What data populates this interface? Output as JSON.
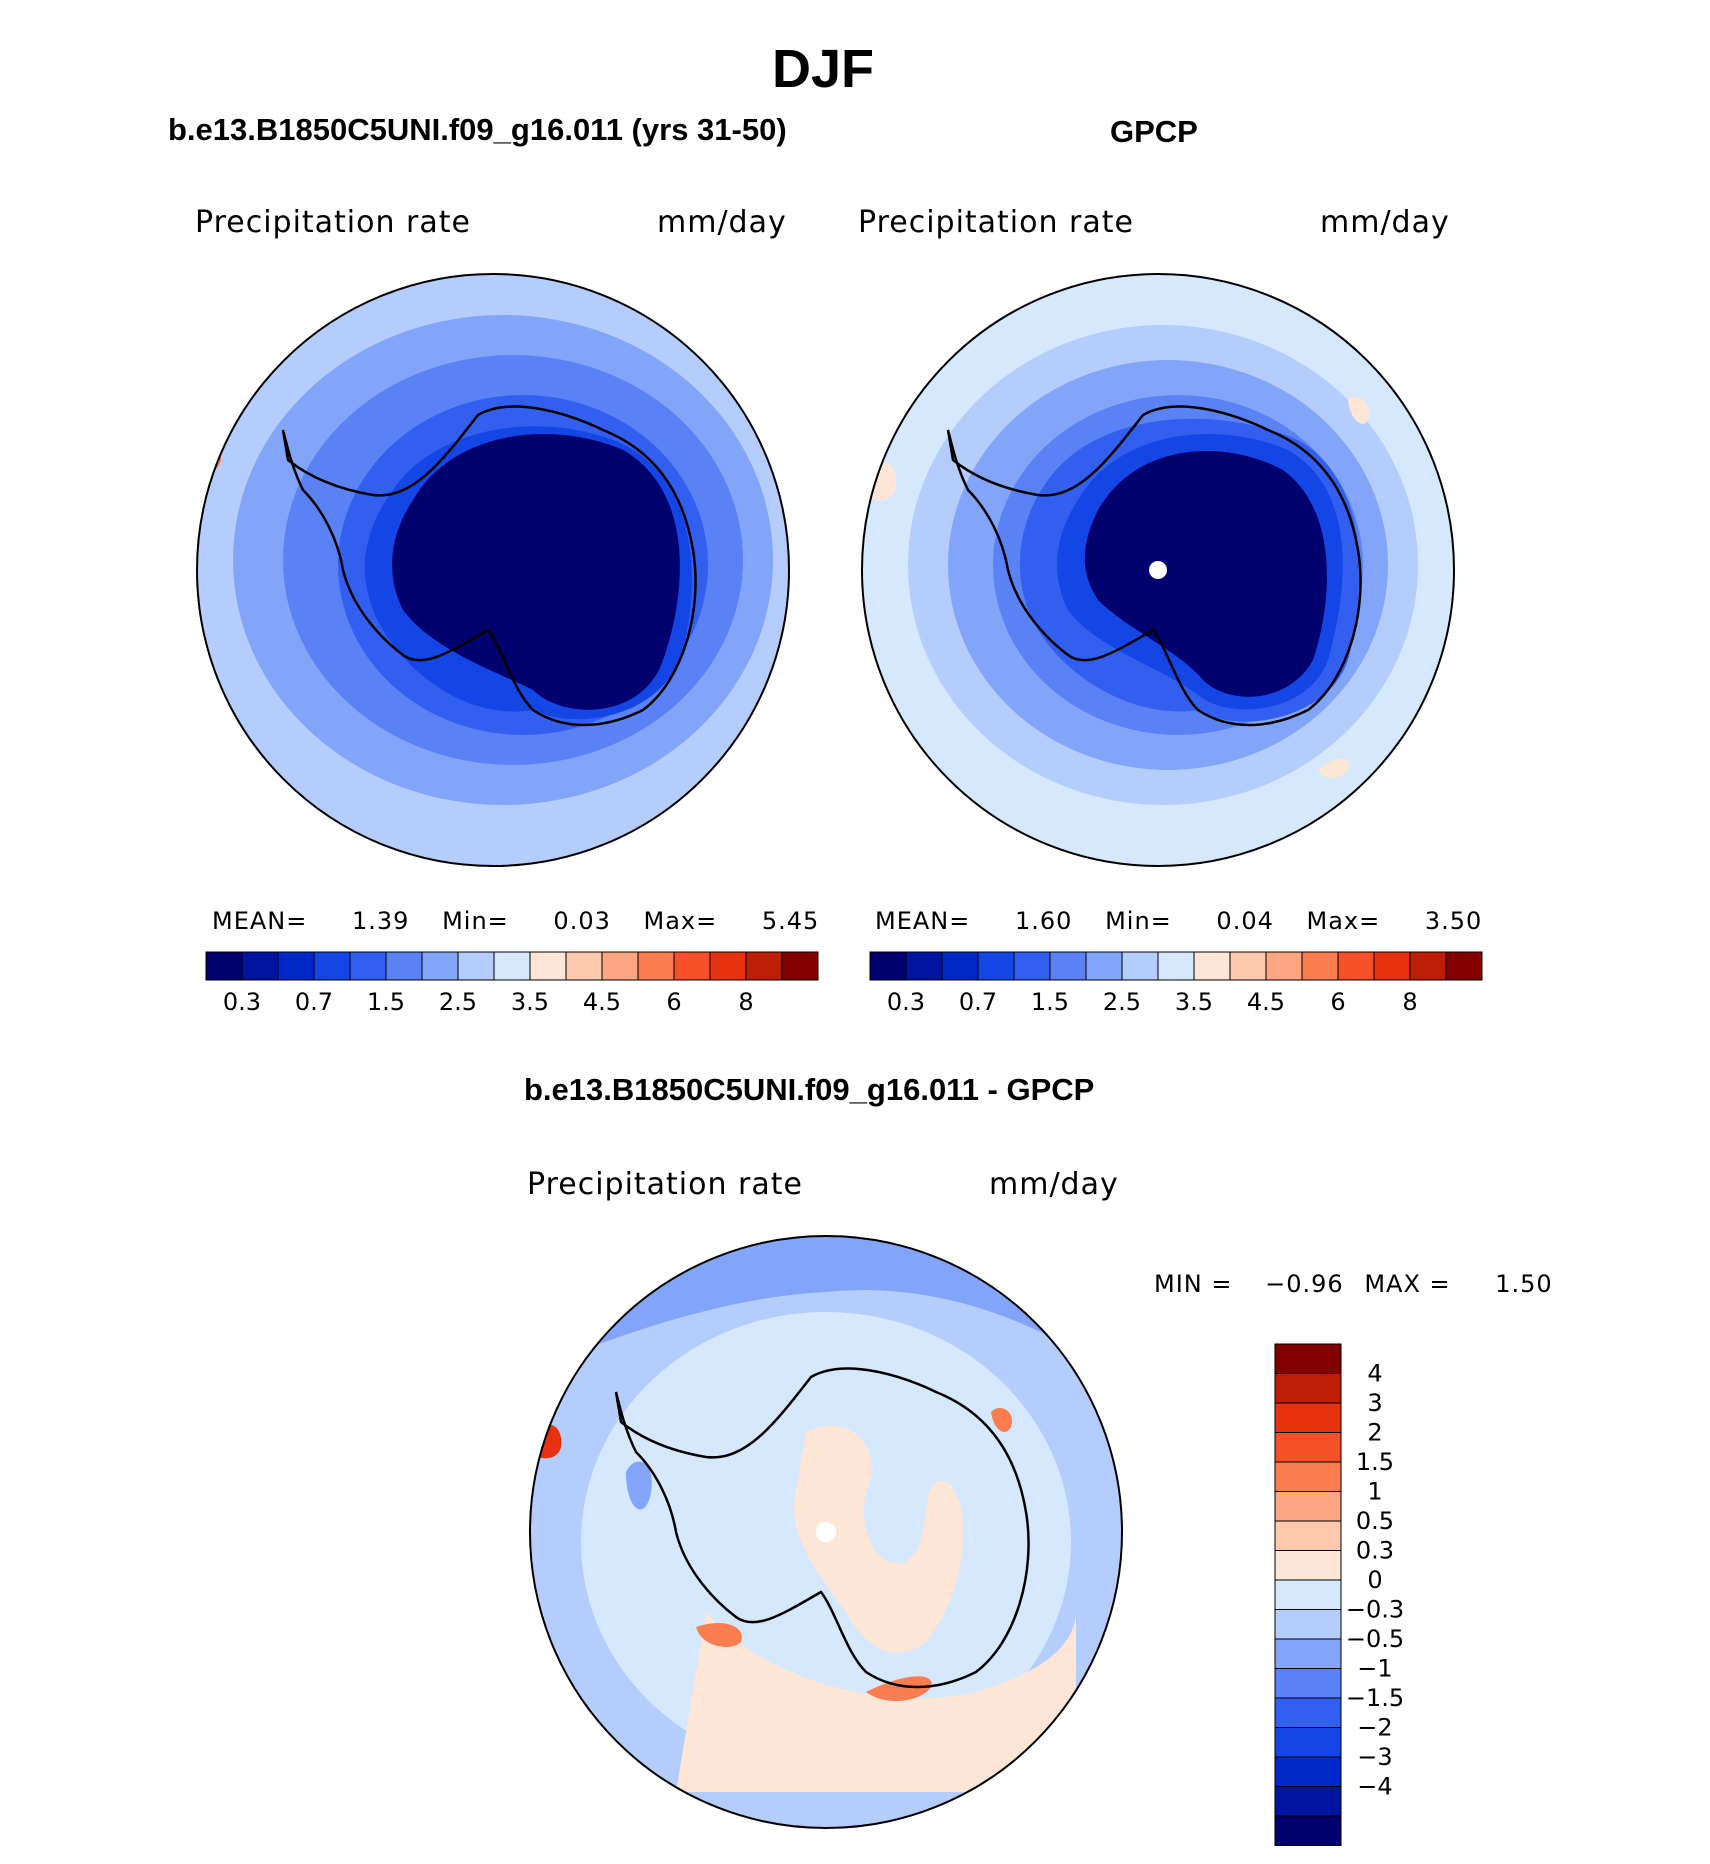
{
  "page_title": "DJF",
  "colors": {
    "blues": [
      "#00006e",
      "#0014a0",
      "#0028c8",
      "#1446e6",
      "#325ff0",
      "#5a82f5",
      "#82a5fa",
      "#b4cdfc",
      "#d6e8fd"
    ],
    "reds": [
      "#fde6d6",
      "#fcc8ae",
      "#fca582",
      "#fa7d50",
      "#f55028",
      "#e6320f",
      "#be1e05",
      "#820000"
    ],
    "coast": "#000000"
  },
  "panels": [
    {
      "title": "b.e13.B1850C5UNI.f09_g16.011 (yrs 31-50)",
      "variable": "Precipitation rate",
      "units": "mm/day",
      "stats": {
        "mean_label": "MEAN=",
        "mean": "1.39",
        "min_label": "Min=",
        "min": "0.03",
        "max_label": "Max=",
        "max": "5.45"
      },
      "colorbar_ticks": [
        "0.3",
        "0.7",
        "1.5",
        "2.5",
        "3.5",
        "4.5",
        "6",
        "8"
      ]
    },
    {
      "title": "GPCP",
      "variable": "Precipitation rate",
      "units": "mm/day",
      "stats": {
        "mean_label": "MEAN=",
        "mean": "1.60",
        "min_label": "Min=",
        "min": "0.04",
        "max_label": "Max=",
        "max": "3.50"
      },
      "colorbar_ticks": [
        "0.3",
        "0.7",
        "1.5",
        "2.5",
        "3.5",
        "4.5",
        "6",
        "8"
      ]
    }
  ],
  "diff": {
    "title": "b.e13.B1850C5UNI.f09_g16.011 - GPCP",
    "variable": "Precipitation rate",
    "units": "mm/day",
    "min_label": "MIN =",
    "min": "−0.96",
    "max_label": "MAX =",
    "max": "1.50",
    "colorbar_ticks": [
      "4",
      "3",
      "2",
      "1.5",
      "1",
      "0.5",
      "0.3",
      "0",
      "−0.3",
      "−0.5",
      "−1",
      "−1.5",
      "−2",
      "−3",
      "−4"
    ],
    "colorbar_colors": [
      "#820000",
      "#be1e05",
      "#e6320f",
      "#f55028",
      "#fa7d50",
      "#fca582",
      "#fcc8ae",
      "#fde6d6",
      "#d6e8fd",
      "#b4cdfc",
      "#82a5fa",
      "#5a82f5",
      "#325ff0",
      "#1446e6",
      "#0028c8",
      "#0014a0",
      "#00006e"
    ]
  }
}
